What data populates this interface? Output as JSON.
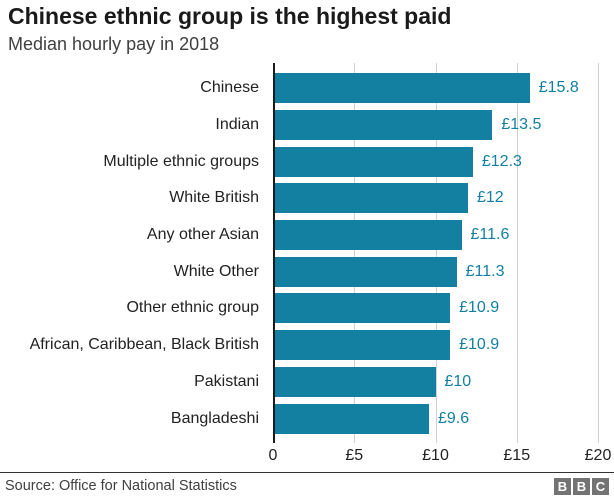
{
  "header": {
    "title": "Chinese ethnic group is the highest paid",
    "subtitle": "Median hourly pay in 2018"
  },
  "chart_data": {
    "type": "bar",
    "orientation": "horizontal",
    "title": "Chinese ethnic group is the highest paid",
    "subtitle": "Median hourly pay in 2018",
    "categories": [
      "Chinese",
      "Indian",
      "Multiple ethnic groups",
      "White British",
      "Any other Asian",
      "White Other",
      "Other ethnic group",
      "African, Caribbean, Black British",
      "Pakistani",
      "Bangladeshi"
    ],
    "values": [
      15.8,
      13.5,
      12.3,
      12,
      11.6,
      11.3,
      10.9,
      10.9,
      10,
      9.6
    ],
    "value_labels": [
      "£15.8",
      "£13.5",
      "£12.3",
      "£12",
      "£11.6",
      "£11.3",
      "£10.9",
      "£10.9",
      "£10",
      "£9.6"
    ],
    "x_ticks": [
      "0",
      "£5",
      "£10",
      "£15",
      "£20"
    ],
    "xlim": [
      0,
      20
    ],
    "grid": "vertical",
    "bar_color": "#1380A1",
    "value_label_color": "#1380A1",
    "gridline_color": "#d0d0d0",
    "axis_color": "#1a1a1a"
  },
  "footer": {
    "source": "Source: Office for National Statistics",
    "logo_letters": [
      "B",
      "B",
      "C"
    ]
  }
}
